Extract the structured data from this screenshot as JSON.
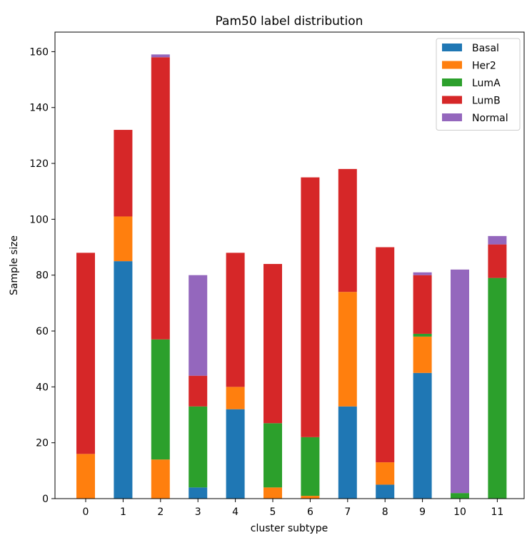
{
  "chart_data": {
    "type": "bar",
    "stacked": true,
    "title": "Pam50 label distribution",
    "xlabel": "cluster subtype",
    "ylabel": "Sample size",
    "categories": [
      "0",
      "1",
      "2",
      "3",
      "4",
      "5",
      "6",
      "7",
      "8",
      "9",
      "10",
      "11"
    ],
    "ylim": [
      0,
      167
    ],
    "yticks": [
      0,
      20,
      40,
      60,
      80,
      100,
      120,
      140,
      160
    ],
    "legend_position": "top-right",
    "series": [
      {
        "name": "Basal",
        "color": "#1f77b4",
        "values": [
          0,
          85,
          0,
          4,
          32,
          0,
          0,
          33,
          5,
          45,
          0,
          0
        ]
      },
      {
        "name": "Her2",
        "color": "#ff7f0e",
        "values": [
          16,
          16,
          14,
          0,
          8,
          4,
          1,
          41,
          8,
          13,
          0,
          0
        ]
      },
      {
        "name": "LumA",
        "color": "#2ca02c",
        "values": [
          0,
          0,
          43,
          29,
          0,
          23,
          21,
          0,
          0,
          1,
          2,
          79
        ]
      },
      {
        "name": "LumB",
        "color": "#d62728",
        "values": [
          72,
          31,
          101,
          11,
          48,
          57,
          93,
          44,
          77,
          21,
          0,
          12
        ]
      },
      {
        "name": "Normal",
        "color": "#9467bd",
        "values": [
          0,
          0,
          1,
          36,
          0,
          0,
          0,
          0,
          0,
          1,
          80,
          3
        ]
      }
    ]
  }
}
